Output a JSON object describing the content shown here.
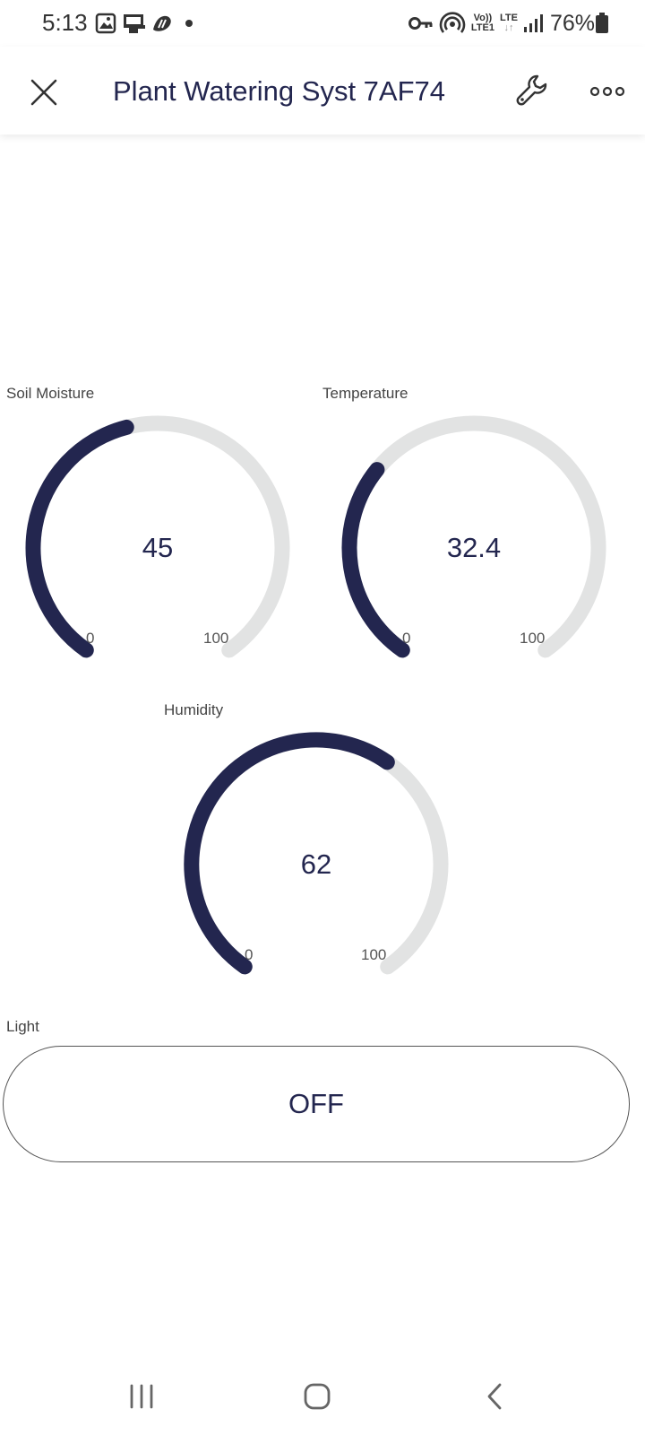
{
  "status_bar": {
    "time": "5:13",
    "battery_percent": "76%",
    "volte_label": "Vo))",
    "lte1_label": "LTE1",
    "lte_label": "LTE",
    "icons": [
      "gallery-icon",
      "cast-icon",
      "app-notification-icon",
      "dot-icon",
      "vpn-key-icon",
      "hotspot-icon",
      "volte-icon",
      "lte-icon",
      "signal-icon",
      "battery-icon"
    ]
  },
  "app_bar": {
    "title": "Plant Watering Syst 7AF74",
    "icons": [
      "close-icon",
      "wrench-icon",
      "more-icon"
    ]
  },
  "gauges": [
    {
      "id": "soil",
      "label": "Soil Moisture",
      "value": 45,
      "display": "45",
      "min": 0,
      "max": 100,
      "min_label": "0",
      "max_label": "100"
    },
    {
      "id": "temperature",
      "label": "Temperature",
      "value": 32.4,
      "display": "32.4",
      "min": 0,
      "max": 100,
      "min_label": "0",
      "max_label": "100"
    },
    {
      "id": "humidity",
      "label": "Humidity",
      "value": 62,
      "display": "62",
      "min": 0,
      "max": 100,
      "min_label": "0",
      "max_label": "100"
    }
  ],
  "light": {
    "label": "Light",
    "state": "OFF"
  },
  "colors": {
    "accent": "#23264f",
    "track": "#e2e3e3",
    "text": "#23264f"
  },
  "nav_bar": {
    "icons": [
      "recents-icon",
      "home-icon",
      "back-icon"
    ]
  }
}
